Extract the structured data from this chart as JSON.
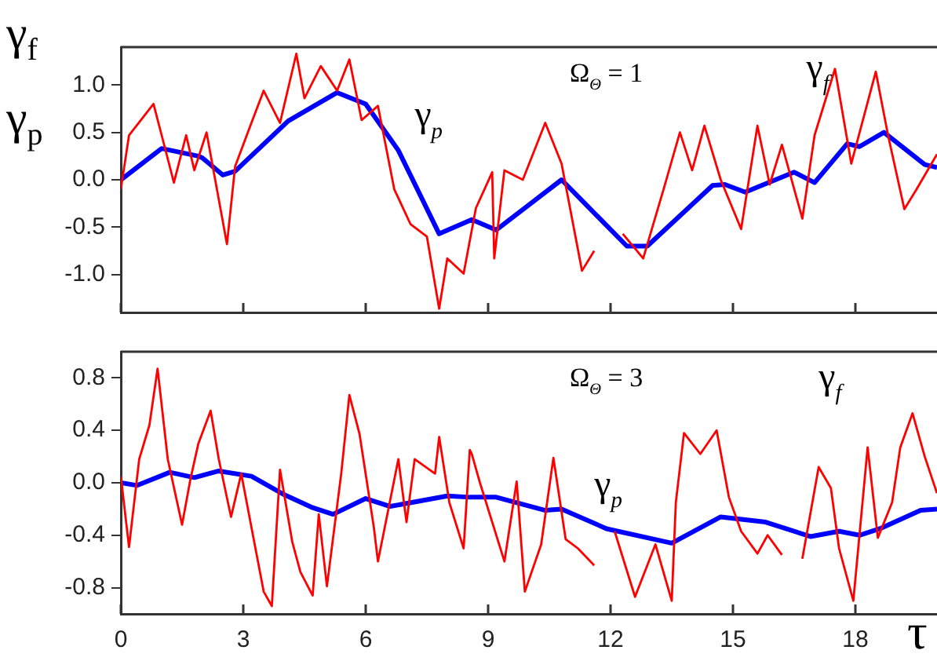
{
  "chart_data": [
    {
      "type": "line",
      "ylabel": "γ$_{f}$ γ$_{p}$",
      "annotations": [
        "Ω$_{Θ}$ = 1"
      ],
      "xlim": [
        0,
        20
      ],
      "xticks": [
        {
          "value": 0,
          "label": null
        },
        {
          "value": 3,
          "label": null
        },
        {
          "value": 6,
          "label": null
        },
        {
          "value": 9,
          "label": null
        },
        {
          "value": 12,
          "label": null
        },
        {
          "value": 15,
          "label": null
        },
        {
          "value": 18,
          "label": null
        }
      ],
      "ylim": [
        -1.4,
        1.4
      ],
      "yticks": [
        {
          "value": -1,
          "label": "-1.0"
        },
        {
          "value": -0.5,
          "label": "-0.5"
        },
        {
          "value": 0,
          "label": "0.0"
        },
        {
          "value": 0.5,
          "label": "0.5"
        },
        {
          "value": 1,
          "label": "1.0"
        }
      ],
      "tick_labels": "y",
      "grid": false,
      "legend": false,
      "marker": "none",
      "line_style": "solid",
      "series": [
        {
          "name": "γ$_{f}$",
          "color": "#ff0000",
          "x": [
            0,
            0.2,
            0.8,
            1.0,
            1.3,
            1.6,
            1.8,
            2.1,
            2.6,
            2.8,
            3.2,
            3.5,
            3.9,
            4.3,
            4.5,
            4.9,
            5.3,
            5.6,
            5.9,
            6.3,
            6.7,
            7.1,
            7.5,
            7.8,
            8.0,
            8.4,
            8.7,
            9.1,
            9.15,
            9.4,
            9.85,
            10.4,
            10.8,
            11.3,
            11.6,
            12.0,
            12.3,
            12.8,
            13.3,
            13.7,
            14.0,
            14.3,
            14.7,
            15.2,
            15.6,
            15.9,
            16.2,
            16.7,
            17.0,
            17.5,
            17.9,
            18.5,
            18.8,
            19.2,
            19.5,
            20
          ],
          "values": [
            -0.1,
            0.47,
            0.8,
            0.47,
            -0.03,
            0.47,
            0.1,
            0.5,
            -0.68,
            0.14,
            0.6,
            0.94,
            0.6,
            1.33,
            0.86,
            1.2,
            0.94,
            1.27,
            0.63,
            0.78,
            -0.1,
            -0.47,
            -0.6,
            -1.36,
            -0.83,
            -0.99,
            -0.3,
            0.08,
            -0.83,
            0.1,
            0.0,
            0.6,
            0.17,
            -0.96,
            -0.75,
            null,
            -0.57,
            -0.83,
            -0.1,
            0.5,
            0.1,
            0.57,
            0.0,
            -0.52,
            0.57,
            -0.05,
            0.37,
            -0.41,
            0.47,
            1.17,
            0.17,
            1.14,
            0.47,
            -0.31,
            -0.1,
            0.27
          ]
        },
        {
          "name": "γ$_{p}$",
          "color": "#0000ff",
          "x": [
            0,
            1.0,
            1.9,
            2.0,
            2.5,
            2.8,
            4.1,
            5.3,
            6.0,
            6.8,
            7.8,
            8.6,
            9.2,
            10.8,
            12.4,
            12.9,
            14.5,
            14.8,
            15.3,
            16.5,
            17.0,
            17.8,
            18.1,
            18.7,
            19.7,
            20
          ],
          "values": [
            0,
            0.33,
            0.25,
            0.23,
            0.05,
            0.09,
            0.62,
            0.92,
            0.8,
            0.31,
            -0.57,
            -0.42,
            -0.53,
            0.0,
            -0.7,
            -0.7,
            -0.06,
            -0.05,
            -0.13,
            0.08,
            -0.03,
            0.38,
            0.35,
            0.5,
            0.16,
            0.13
          ]
        }
      ]
    },
    {
      "type": "line",
      "xlabel": "τ",
      "annotations": [
        "Ω$_{Θ}$ = 3"
      ],
      "xlim": [
        0,
        20
      ],
      "xticks": [
        0,
        3,
        6,
        9,
        12,
        15,
        18
      ],
      "ylim": [
        -1,
        1
      ],
      "yticks": [
        -0.8,
        -0.4,
        {
          "value": 0,
          "label": "0.0"
        },
        0.4,
        0.8
      ],
      "grid": false,
      "legend": false,
      "marker": "none",
      "line_style": "solid",
      "series": [
        {
          "name": "γ$_{f}$",
          "color": "#ff0000",
          "x": [
            0,
            0.2,
            0.45,
            0.7,
            0.9,
            1.15,
            1.5,
            1.7,
            1.9,
            2.2,
            2.4,
            2.7,
            2.95,
            3.2,
            3.5,
            3.7,
            3.9,
            4.2,
            4.4,
            4.7,
            4.85,
            5.05,
            5.4,
            5.6,
            5.85,
            6.2,
            6.3,
            6.8,
            7.0,
            7.2,
            7.7,
            7.8,
            8.05,
            8.4,
            8.55,
            8.6,
            8.8,
            9.4,
            9.7,
            9.9,
            10.3,
            10.6,
            10.9,
            11.2,
            11.6,
            11.9,
            12.1,
            12.6,
            13.1,
            13.5,
            13.6,
            13.8,
            14.2,
            14.6,
            14.9,
            15.2,
            15.6,
            15.85,
            16.2,
            16.5,
            16.7,
            17.1,
            17.4,
            17.6,
            17.95,
            18.3,
            18.55,
            18.9,
            19.1,
            19.4,
            19.7,
            20
          ],
          "values": [
            0.05,
            -0.49,
            0.18,
            0.44,
            0.87,
            0.18,
            -0.32,
            0.02,
            0.3,
            0.55,
            0.18,
            -0.26,
            0.07,
            -0.34,
            -0.83,
            -0.94,
            0.1,
            -0.45,
            -0.68,
            -0.86,
            -0.24,
            -0.79,
            0.07,
            0.67,
            0.37,
            -0.34,
            -0.6,
            0.18,
            -0.3,
            0.18,
            0.07,
            0.35,
            -0.15,
            -0.5,
            0.25,
            0.22,
            0.0,
            -0.6,
            0.01,
            -0.83,
            -0.47,
            0.19,
            -0.43,
            -0.5,
            -0.63,
            null,
            -0.37,
            -0.87,
            -0.47,
            -0.9,
            -0.15,
            0.38,
            0.22,
            0.4,
            -0.11,
            -0.37,
            -0.54,
            -0.4,
            -0.55,
            null,
            -0.58,
            0.12,
            -0.04,
            -0.5,
            -0.9,
            0.27,
            -0.42,
            -0.15,
            0.27,
            0.53,
            0.2,
            -0.08
          ]
        },
        {
          "name": "γ$_{p}$",
          "color": "#0000ff",
          "x": [
            0,
            0.4,
            1.2,
            1.8,
            2.4,
            3.2,
            4.0,
            4.7,
            5.2,
            6.0,
            6.6,
            8.0,
            8.55,
            9.2,
            10.4,
            10.8,
            11.9,
            13.5,
            14.7,
            15.8,
            16.9,
            17.6,
            18.1,
            18.6,
            19.6,
            20
          ],
          "values": [
            0,
            -0.02,
            0.08,
            0.04,
            0.09,
            0.05,
            -0.09,
            -0.19,
            -0.24,
            -0.12,
            -0.18,
            -0.1,
            -0.11,
            -0.11,
            -0.21,
            -0.2,
            -0.35,
            -0.46,
            -0.26,
            -0.3,
            -0.41,
            -0.37,
            -0.4,
            -0.35,
            -0.21,
            -0.2
          ]
        }
      ]
    }
  ]
}
